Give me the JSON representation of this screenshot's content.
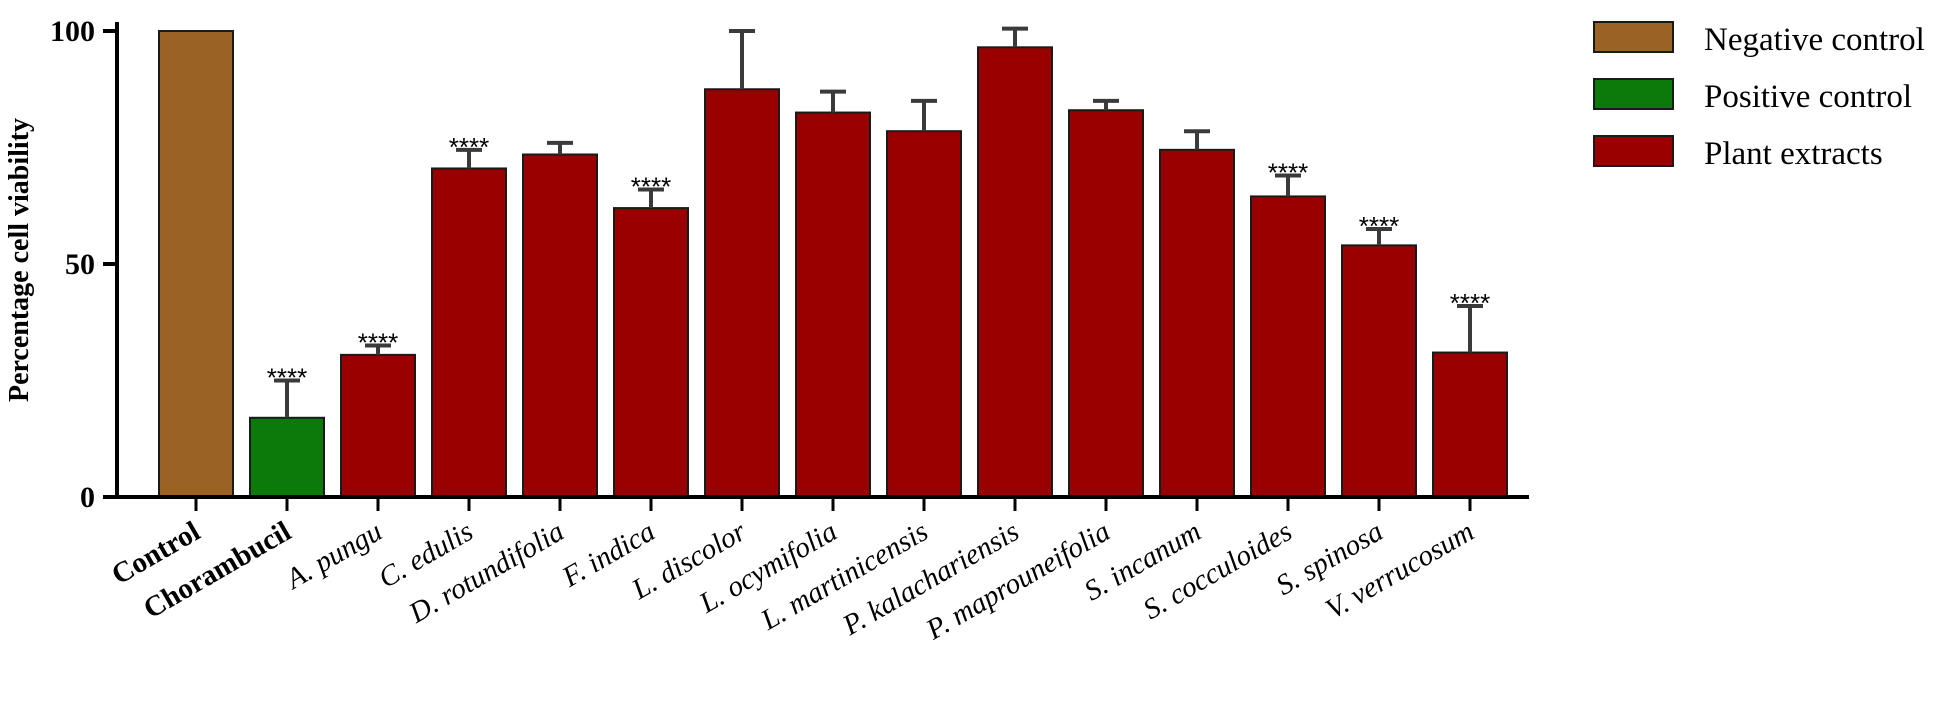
{
  "chart_data": {
    "type": "bar",
    "title": "",
    "xlabel": "",
    "ylabel": "Percentage cell viability",
    "ylim": [
      0,
      100
    ],
    "yticks": [
      0,
      50,
      100
    ],
    "grid": false,
    "legend_position": "top-right",
    "legend": [
      {
        "name": "Negative control",
        "color": "#9a6323"
      },
      {
        "name": "Positive control",
        "color": "#0b7a0b"
      },
      {
        "name": "Plant extracts",
        "color": "#990000"
      }
    ],
    "categories": [
      {
        "label": "Control",
        "style": "bold"
      },
      {
        "label": "Chorambucil",
        "style": "bold"
      },
      {
        "label": "A. pungu",
        "style": "italic"
      },
      {
        "label": "C. edulis",
        "style": "italic"
      },
      {
        "label": "D. rotundifolia",
        "style": "italic"
      },
      {
        "label": "F. indica",
        "style": "italic"
      },
      {
        "label": "L. discolor",
        "style": "italic"
      },
      {
        "label": "L. ocymifolia",
        "style": "italic"
      },
      {
        "label": "L. martinicensis",
        "style": "italic"
      },
      {
        "label": "P. kalachariensis",
        "style": "italic"
      },
      {
        "label": "P. maprouneifolia",
        "style": "italic"
      },
      {
        "label": "S. incanum",
        "style": "italic"
      },
      {
        "label": "S. cocculoides",
        "style": "italic"
      },
      {
        "label": "S. spinosa",
        "style": "italic"
      },
      {
        "label": "V. verrucosum",
        "style": "italic"
      }
    ],
    "values": [
      100,
      17,
      30.5,
      70.5,
      73.5,
      62,
      87.5,
      82.5,
      78.5,
      96.5,
      83,
      74.5,
      64.5,
      54,
      31
    ],
    "errors": [
      0,
      8,
      2,
      4,
      2.5,
      4,
      12.5,
      4.5,
      6.5,
      4,
      2,
      4,
      4.5,
      3.5,
      10
    ],
    "groups": [
      "Negative control",
      "Positive control",
      "Plant extracts",
      "Plant extracts",
      "Plant extracts",
      "Plant extracts",
      "Plant extracts",
      "Plant extracts",
      "Plant extracts",
      "Plant extracts",
      "Plant extracts",
      "Plant extracts",
      "Plant extracts",
      "Plant extracts",
      "Plant extracts"
    ],
    "annotations": [
      "",
      "****",
      "****",
      "****",
      "",
      "****",
      "",
      "",
      "",
      "",
      "",
      "",
      "****",
      "****",
      "****"
    ]
  }
}
